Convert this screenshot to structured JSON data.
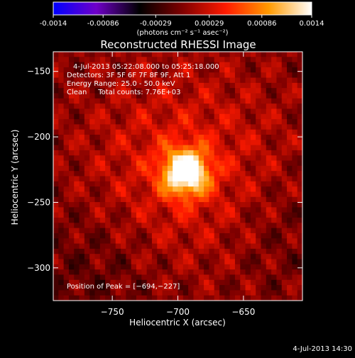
{
  "colorbar": {
    "colors": [
      "#0000ff",
      "#6f00c8",
      "#000000",
      "#800000",
      "#ff1a00",
      "#ff9a00",
      "#ffffff"
    ],
    "tick_labels": [
      "-0.0014",
      "-0.00086",
      "-0.00029",
      "0.00029",
      "0.00086",
      "0.0014"
    ],
    "tick_values": [
      -0.0014,
      -0.00086,
      -0.00029,
      0.00029,
      0.00086,
      0.0014
    ],
    "range": [
      -0.0014,
      0.0014
    ],
    "unit_label": "(photons cm⁻² s⁻¹ asec⁻²)"
  },
  "chart_data": {
    "type": "heatmap",
    "title": "Reconstructed RHESSI Image",
    "xlabel": "Heliocentric X (arcsec)",
    "ylabel": "Heliocentric Y (arcsec)",
    "xlim": [
      -795,
      -605
    ],
    "ylim": [
      -325,
      -135
    ],
    "x_ticks": [
      -750,
      -700,
      -650
    ],
    "y_ticks": [
      -150,
      -200,
      -250,
      -300
    ],
    "x_tick_labels": [
      "−750",
      "−700",
      "−650"
    ],
    "y_tick_labels": [
      "−150",
      "−200",
      "−250",
      "−300"
    ],
    "peak": {
      "x": -694,
      "y": -227
    },
    "annotations": {
      "time_range": "4-Jul-2013 05:22:08.000 to 05:25:18.000",
      "detectors": "Detectors: 3F 5F 6F 7F 8F 9F, Att 1",
      "energy_range": "Energy Range: 25.0 - 50.0 keV",
      "clean_counts": "Clean     Total counts: 7.76E+03",
      "peak_position": "Position of Peak = [−694,−227]"
    }
  },
  "footer": {
    "timestamp": "4-Jul-2013 14:30"
  }
}
